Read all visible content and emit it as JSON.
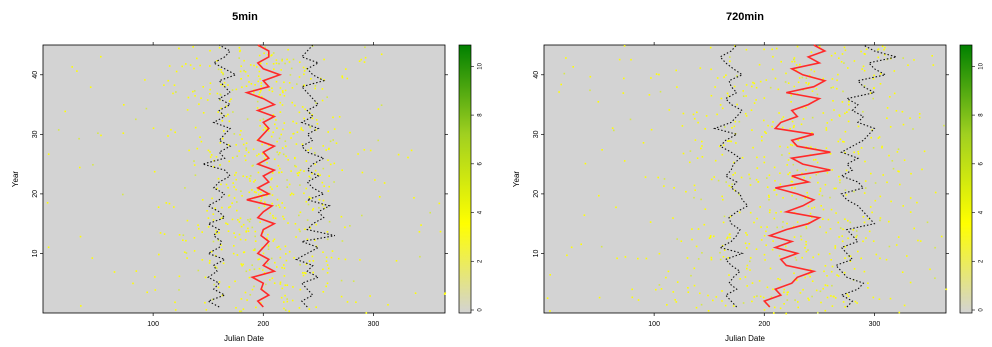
{
  "chart_data": [
    {
      "type": "heatmap",
      "title": "5min",
      "xlabel": "Julian Date",
      "ylabel": "Year",
      "xlim": [
        0,
        365
      ],
      "ylim": [
        0,
        45
      ],
      "xticks": [
        100,
        200,
        300
      ],
      "yticks": [
        10,
        20,
        30,
        40
      ],
      "background_color": "#d3d3d3",
      "point_color": "#ffff00",
      "colorbar": {
        "range": [
          0,
          11
        ],
        "ticks": [
          0,
          2,
          4,
          6,
          8,
          10
        ],
        "colors": [
          "#d3d3d3",
          "#ffff00",
          "#a0d020",
          "#008000"
        ]
      },
      "series": [
        {
          "name": "",
          "style": "black-dotted",
          "x": [
            160,
            150,
            165,
            155,
            160,
            150,
            158,
            155,
            165,
            150,
            160,
            162,
            155,
            160,
            150,
            165,
            160,
            150,
            160,
            165,
            155,
            160,
            170,
            165,
            145,
            165,
            160,
            170,
            160,
            165,
            170,
            155,
            165,
            160,
            170,
            160,
            170,
            165,
            160,
            175,
            165,
            155,
            165,
            170,
            160
          ],
          "y": [
            1,
            2,
            3,
            4,
            5,
            6,
            7,
            8,
            9,
            10,
            11,
            12,
            13,
            14,
            15,
            16,
            17,
            18,
            19,
            20,
            21,
            22,
            23,
            24,
            25,
            26,
            27,
            28,
            29,
            30,
            31,
            32,
            33,
            34,
            35,
            36,
            37,
            38,
            39,
            40,
            41,
            42,
            43,
            44,
            45
          ]
        },
        {
          "name": "",
          "style": "red-solid",
          "x": [
            200,
            195,
            205,
            198,
            200,
            190,
            210,
            200,
            205,
            195,
            200,
            205,
            198,
            200,
            210,
            195,
            200,
            208,
            185,
            205,
            195,
            205,
            200,
            210,
            195,
            205,
            200,
            210,
            195,
            200,
            205,
            200,
            210,
            195,
            210,
            200,
            185,
            205,
            200,
            215,
            200,
            195,
            205,
            205,
            195
          ],
          "y": [
            1,
            2,
            3,
            4,
            5,
            6,
            7,
            8,
            9,
            10,
            11,
            12,
            13,
            14,
            15,
            16,
            17,
            18,
            19,
            20,
            21,
            22,
            23,
            24,
            25,
            26,
            27,
            28,
            29,
            30,
            31,
            32,
            33,
            34,
            35,
            36,
            37,
            38,
            39,
            40,
            41,
            42,
            43,
            44,
            45
          ]
        },
        {
          "name": "",
          "style": "black-dotted",
          "x": [
            240,
            235,
            245,
            240,
            235,
            250,
            240,
            245,
            230,
            240,
            250,
            235,
            265,
            240,
            245,
            255,
            250,
            260,
            240,
            255,
            245,
            240,
            250,
            240,
            245,
            255,
            240,
            235,
            245,
            240,
            250,
            235,
            245,
            240,
            250,
            245,
            240,
            235,
            255,
            245,
            240,
            250,
            235,
            240,
            245
          ],
          "y": [
            1,
            2,
            3,
            4,
            5,
            6,
            7,
            8,
            9,
            10,
            11,
            12,
            13,
            14,
            15,
            16,
            17,
            18,
            19,
            20,
            21,
            22,
            23,
            24,
            25,
            26,
            27,
            28,
            29,
            30,
            31,
            32,
            33,
            34,
            35,
            36,
            37,
            38,
            39,
            40,
            41,
            42,
            43,
            44,
            45
          ]
        }
      ]
    },
    {
      "type": "heatmap",
      "title": "720min",
      "xlabel": "Julian Date",
      "ylabel": "Year",
      "xlim": [
        0,
        365
      ],
      "ylim": [
        0,
        45
      ],
      "xticks": [
        100,
        200,
        300
      ],
      "yticks": [
        10,
        20,
        30,
        40
      ],
      "background_color": "#d3d3d3",
      "point_color": "#ffff00",
      "colorbar": {
        "range": [
          0,
          11
        ],
        "ticks": [
          0,
          2,
          4,
          6,
          8,
          10
        ],
        "colors": [
          "#d3d3d3",
          "#ffff00",
          "#a0d020",
          "#008000"
        ]
      },
      "series": [
        {
          "name": "",
          "style": "black-dotted",
          "x": [
            175,
            170,
            165,
            175,
            168,
            172,
            178,
            170,
            165,
            180,
            160,
            170,
            175,
            178,
            170,
            168,
            175,
            185,
            180,
            178,
            170,
            175,
            165,
            170,
            172,
            178,
            170,
            160,
            165,
            175,
            155,
            170,
            175,
            180,
            170,
            165,
            175,
            170,
            168,
            180,
            172,
            165,
            160,
            170,
            175
          ],
          "y": [
            1,
            2,
            3,
            4,
            5,
            6,
            7,
            8,
            9,
            10,
            11,
            12,
            13,
            14,
            15,
            16,
            17,
            18,
            19,
            20,
            21,
            22,
            23,
            24,
            25,
            26,
            27,
            28,
            29,
            30,
            31,
            32,
            33,
            34,
            35,
            36,
            37,
            38,
            39,
            40,
            41,
            42,
            43,
            44,
            45
          ]
        },
        {
          "name": "",
          "style": "red-solid",
          "x": [
            205,
            200,
            215,
            210,
            225,
            230,
            245,
            220,
            215,
            230,
            210,
            225,
            205,
            220,
            240,
            250,
            220,
            235,
            245,
            230,
            210,
            240,
            225,
            260,
            235,
            225,
            260,
            230,
            225,
            245,
            210,
            215,
            230,
            225,
            240,
            250,
            220,
            245,
            255,
            235,
            225,
            250,
            240,
            255,
            245
          ],
          "y": [
            1,
            2,
            3,
            4,
            5,
            6,
            7,
            8,
            9,
            10,
            11,
            12,
            13,
            14,
            15,
            16,
            17,
            18,
            19,
            20,
            21,
            22,
            23,
            24,
            25,
            26,
            27,
            28,
            29,
            30,
            31,
            32,
            33,
            34,
            35,
            36,
            37,
            38,
            39,
            40,
            41,
            42,
            43,
            44,
            45
          ]
        },
        {
          "name": "",
          "style": "black-dotted",
          "x": [
            275,
            280,
            270,
            285,
            290,
            275,
            270,
            265,
            280,
            275,
            270,
            285,
            280,
            275,
            300,
            295,
            290,
            285,
            275,
            270,
            290,
            285,
            270,
            280,
            275,
            285,
            270,
            280,
            290,
            295,
            300,
            285,
            290,
            280,
            285,
            275,
            300,
            290,
            285,
            310,
            300,
            295,
            320,
            300,
            290
          ],
          "y": [
            1,
            2,
            3,
            4,
            5,
            6,
            7,
            8,
            9,
            10,
            11,
            12,
            13,
            14,
            15,
            16,
            17,
            18,
            19,
            20,
            21,
            22,
            23,
            24,
            25,
            26,
            27,
            28,
            29,
            30,
            31,
            32,
            33,
            34,
            35,
            36,
            37,
            38,
            39,
            40,
            41,
            42,
            43,
            44,
            45
          ]
        }
      ]
    }
  ]
}
